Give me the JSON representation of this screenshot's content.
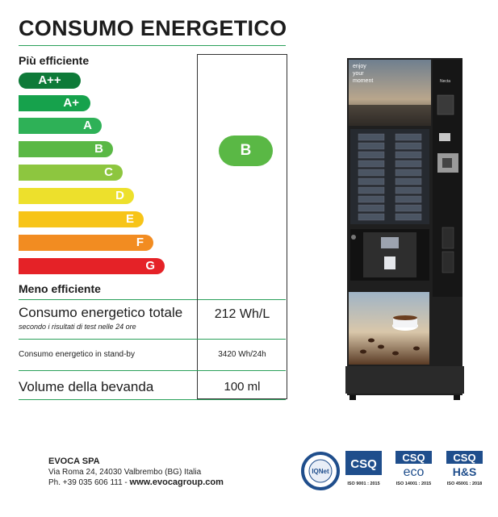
{
  "title": "CONSUMO ENERGETICO",
  "scale": {
    "top_label": "Più efficiente",
    "bottom_label": "Meno efficiente",
    "classes": [
      {
        "label": "A++",
        "color": "#0e7a38"
      },
      {
        "label": "A+",
        "color": "#16a24c"
      },
      {
        "label": "A",
        "color": "#2eb157"
      },
      {
        "label": "B",
        "color": "#5ab845"
      },
      {
        "label": "C",
        "color": "#8dc63f"
      },
      {
        "label": "D",
        "color": "#ede02c"
      },
      {
        "label": "E",
        "color": "#f7c418"
      },
      {
        "label": "F",
        "color": "#f28c21"
      },
      {
        "label": "G",
        "color": "#e52227"
      }
    ]
  },
  "rating": {
    "class": "B",
    "color": "#5ab845"
  },
  "rows": {
    "total_label": "Consumo energetico totale",
    "total_sub": "secondo i risultati di test nelle 24 ore",
    "total_value": "212 Wh/L",
    "standby_label": "Consumo energetico in stand-by",
    "standby_value": "3420 Wh/24h",
    "volume_label": "Volume della bevanda",
    "volume_value": "100 ml"
  },
  "machine": {
    "screen_text_1": "enjoy",
    "screen_text_2": "your",
    "screen_text_3": "moment",
    "brand": "Necta"
  },
  "company": {
    "name": "EVOCA SPA",
    "address": "Via Roma 24, 24030 Valbrembo (BG) Italia",
    "phone_prefix": "Ph.  +39 035 606 111 - ",
    "website": "www.evocagroup.com"
  },
  "certifications": {
    "ionet": "IQNet",
    "csq": "CSQ",
    "eco": "eco",
    "hs": "H&S",
    "iso9001": "ISO 9001 : 2015",
    "iso14001": "ISO 14001 : 2015",
    "iso45001": "ISO 45001 : 2018"
  }
}
